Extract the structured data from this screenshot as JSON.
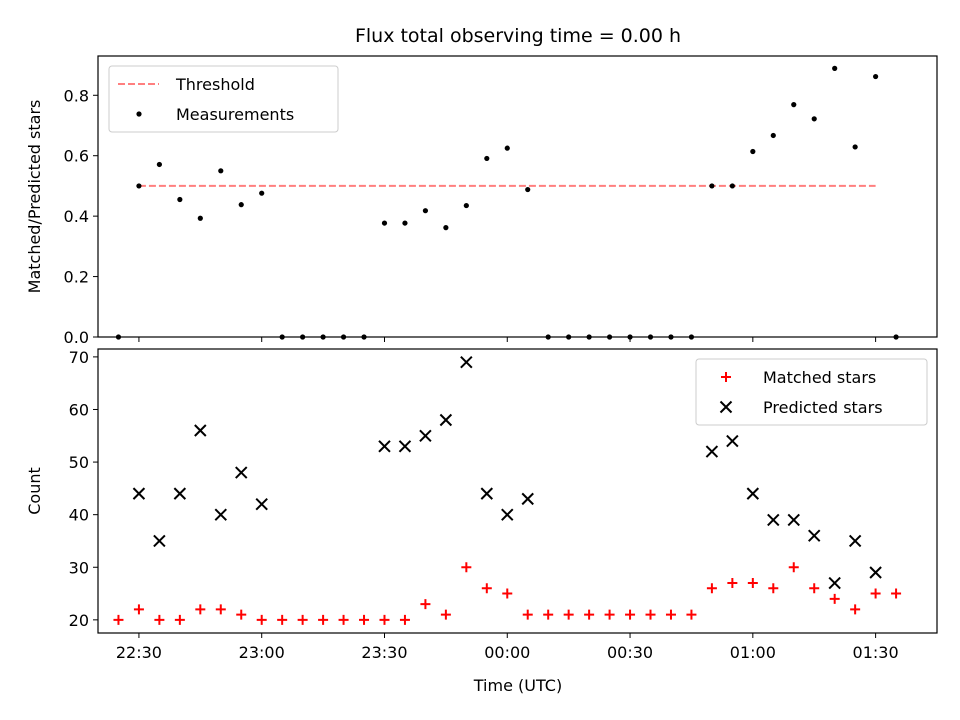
{
  "chart_data": {
    "title": "Flux total observing time = 0.00 h",
    "xlabel": "Time (UTC)",
    "x_axis": {
      "type": "time",
      "range": [
        "22:20",
        "01:45"
      ],
      "tick_labels": [
        "22:30",
        "23:00",
        "23:30",
        "00:00",
        "00:30",
        "01:00",
        "01:30"
      ]
    },
    "times": [
      "22:25",
      "22:30",
      "22:35",
      "22:40",
      "22:45",
      "22:50",
      "22:55",
      "23:00",
      "23:05",
      "23:10",
      "23:15",
      "23:20",
      "23:25",
      "23:30",
      "23:35",
      "23:40",
      "23:45",
      "23:50",
      "23:55",
      "00:00",
      "00:05",
      "00:10",
      "00:15",
      "00:20",
      "00:25",
      "00:30",
      "00:35",
      "00:40",
      "00:45",
      "00:50",
      "00:55",
      "01:00",
      "01:05",
      "01:10",
      "01:15",
      "01:20",
      "01:25",
      "01:30",
      "01:35"
    ],
    "panels": [
      {
        "type": "scatter",
        "ylabel": "Matched/Predicted stars",
        "ylim": [
          0,
          0.93
        ],
        "y_ticks": [
          0.0,
          0.2,
          0.4,
          0.6,
          0.8
        ],
        "legend": "top-left",
        "series": [
          {
            "name": "Threshold",
            "kind": "dashed-line",
            "color": "#ff7f7f",
            "x_range": [
              "22:30",
              "01:30"
            ],
            "value": 0.5
          },
          {
            "name": "Measurements",
            "kind": "points",
            "color": "#000000",
            "values": [
              0.0,
              0.5,
              0.571,
              0.455,
              0.393,
              0.55,
              0.438,
              0.476,
              0.0,
              0.0,
              0.0,
              0.0,
              0.0,
              0.377,
              0.377,
              0.418,
              0.362,
              0.435,
              0.591,
              0.625,
              0.488,
              0.0,
              0.0,
              0.0,
              0.0,
              0.0,
              0.0,
              0.0,
              0.0,
              0.5,
              0.5,
              0.614,
              0.667,
              0.769,
              0.722,
              0.889,
              0.629,
              0.862,
              0.0
            ]
          }
        ]
      },
      {
        "type": "scatter",
        "ylabel": "Count",
        "ylim": [
          17.5,
          71.5
        ],
        "y_ticks": [
          20,
          30,
          40,
          50,
          60,
          70
        ],
        "legend": "top-right",
        "series": [
          {
            "name": "Matched stars",
            "marker": "plus",
            "color": "#ff0000",
            "values": [
              20,
              22,
              20,
              20,
              22,
              22,
              21,
              20,
              20,
              20,
              20,
              20,
              20,
              20,
              20,
              23,
              21,
              30,
              26,
              25,
              21,
              21,
              21,
              21,
              21,
              21,
              21,
              21,
              21,
              26,
              27,
              27,
              26,
              30,
              26,
              24,
              22,
              25,
              25
            ]
          },
          {
            "name": "Predicted stars",
            "marker": "x",
            "color": "#000000",
            "values": [
              null,
              44,
              35,
              44,
              56,
              40,
              48,
              42,
              null,
              null,
              null,
              null,
              null,
              53,
              53,
              55,
              58,
              69,
              44,
              40,
              43,
              null,
              null,
              null,
              null,
              null,
              null,
              null,
              null,
              52,
              54,
              44,
              39,
              39,
              36,
              27,
              35,
              29,
              null
            ]
          }
        ]
      }
    ]
  }
}
